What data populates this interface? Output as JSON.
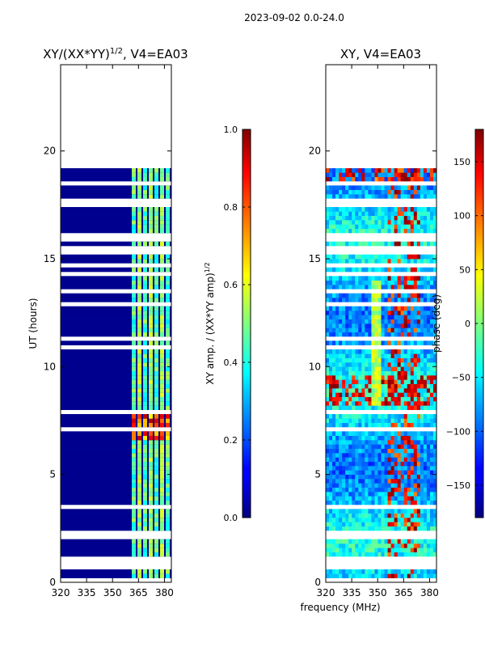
{
  "figure_title": "2023-09-02 0.0-24.0",
  "chart_data": [
    {
      "type": "heatmap",
      "title": "XY/(XX*YY)^1/2, V4=EA03",
      "title_main": "XY/(XX*YY)",
      "title_exp": "1/2",
      "title_tail": ", V4=EA03",
      "xlabel": "",
      "ylabel": "UT (hours)",
      "xlim": [
        320,
        384
      ],
      "ylim": [
        0,
        24
      ],
      "xticks": [
        320,
        335,
        350,
        365,
        380
      ],
      "yticks": [
        0,
        5,
        10,
        15,
        20
      ],
      "data_extent_hours": [
        0,
        19.2
      ],
      "colorbar": {
        "label_main": "XY amp. / (XX*YY amp)",
        "label_exp": "1/2",
        "range": [
          0.0,
          1.0
        ],
        "ticks": [
          "0.0",
          "0.2",
          "0.4",
          "0.6",
          "0.8",
          "1.0"
        ]
      }
    },
    {
      "type": "heatmap",
      "title": "XY, V4=EA03",
      "xlabel": "frequency (MHz)",
      "ylabel": "",
      "xlim": [
        320,
        384
      ],
      "ylim": [
        0,
        24
      ],
      "xticks": [
        320,
        335,
        350,
        365,
        380
      ],
      "yticks": [
        0,
        5,
        10,
        15,
        20
      ],
      "data_extent_hours": [
        0,
        19.2
      ],
      "colorbar": {
        "label": "phase (deg)",
        "range": [
          -180,
          180
        ],
        "ticks": [
          "150",
          "100",
          "50",
          "0",
          "−50",
          "−100",
          "−150"
        ]
      }
    }
  ]
}
